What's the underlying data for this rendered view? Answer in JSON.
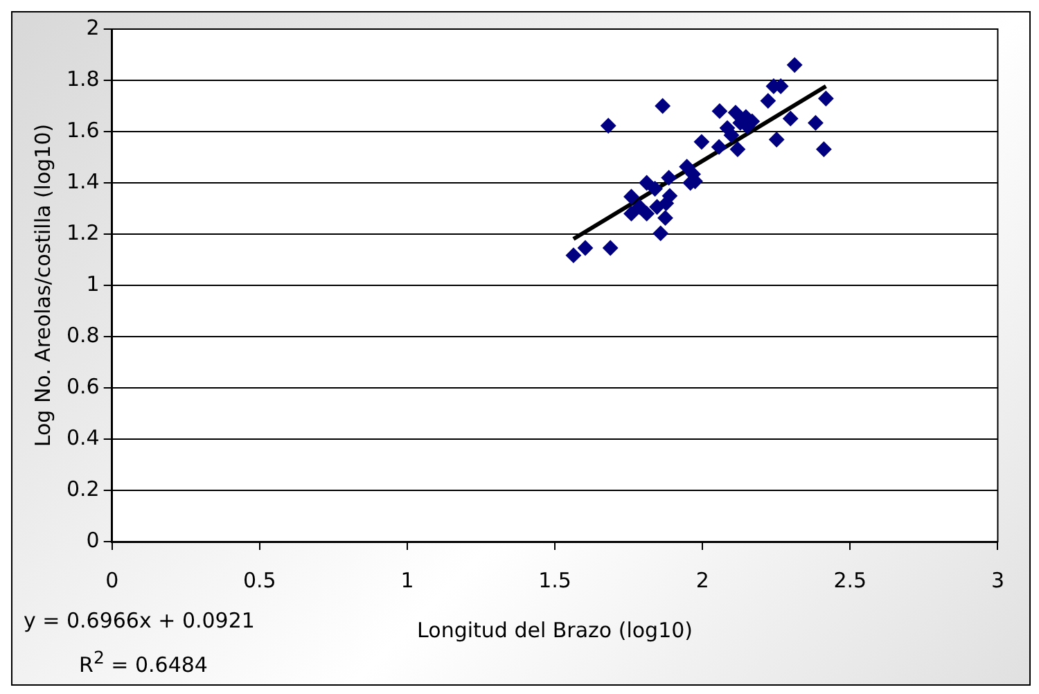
{
  "chart_data": {
    "type": "scatter",
    "xlabel": "Longitud del Brazo (log10)",
    "ylabel": "Log No. Areolas/costilla (log10)",
    "xlim": [
      0,
      3
    ],
    "xticks": [
      0,
      0.5,
      1,
      1.5,
      2,
      2.5,
      3
    ],
    "ylim": [
      0,
      2
    ],
    "yticks": [
      0,
      0.2,
      0.4,
      0.6,
      0.8,
      1,
      1.2,
      1.4,
      1.6,
      1.8,
      2
    ],
    "grid": "y",
    "legend": false,
    "marker": "diamond",
    "annotations": [
      "y = 0.6966x + 0.0921",
      "R$^{2}$ = 0.6484"
    ],
    "series": [
      {
        "color": "#000080",
        "x": [
          1.563,
          1.603,
          1.688,
          1.681,
          1.865,
          1.759,
          1.759,
          1.787,
          1.811,
          1.811,
          1.839,
          1.846,
          1.858,
          1.874,
          1.877,
          1.889,
          1.886,
          1.947,
          1.959,
          1.968,
          1.975,
          1.997,
          2.056,
          2.058,
          2.084,
          2.098,
          2.112,
          2.119,
          2.128,
          2.147,
          2.152,
          2.168,
          2.222,
          2.241,
          2.265,
          2.251,
          2.298,
          2.312,
          2.383,
          2.411,
          2.418
        ],
        "values": [
          1.117,
          1.146,
          1.146,
          1.623,
          1.7,
          1.346,
          1.28,
          1.306,
          1.4,
          1.28,
          1.377,
          1.306,
          1.203,
          1.263,
          1.32,
          1.349,
          1.42,
          1.463,
          1.4,
          1.434,
          1.406,
          1.56,
          1.54,
          1.68,
          1.614,
          1.586,
          1.674,
          1.531,
          1.634,
          1.657,
          1.62,
          1.64,
          1.72,
          1.777,
          1.777,
          1.569,
          1.651,
          1.86,
          1.634,
          1.531,
          1.729
        ]
      },
      {
        "type": "line",
        "color": "#000000",
        "marker": "none",
        "x": [
          1.563,
          2.418
        ],
        "values": [
          1.181,
          1.777
        ]
      }
    ]
  }
}
